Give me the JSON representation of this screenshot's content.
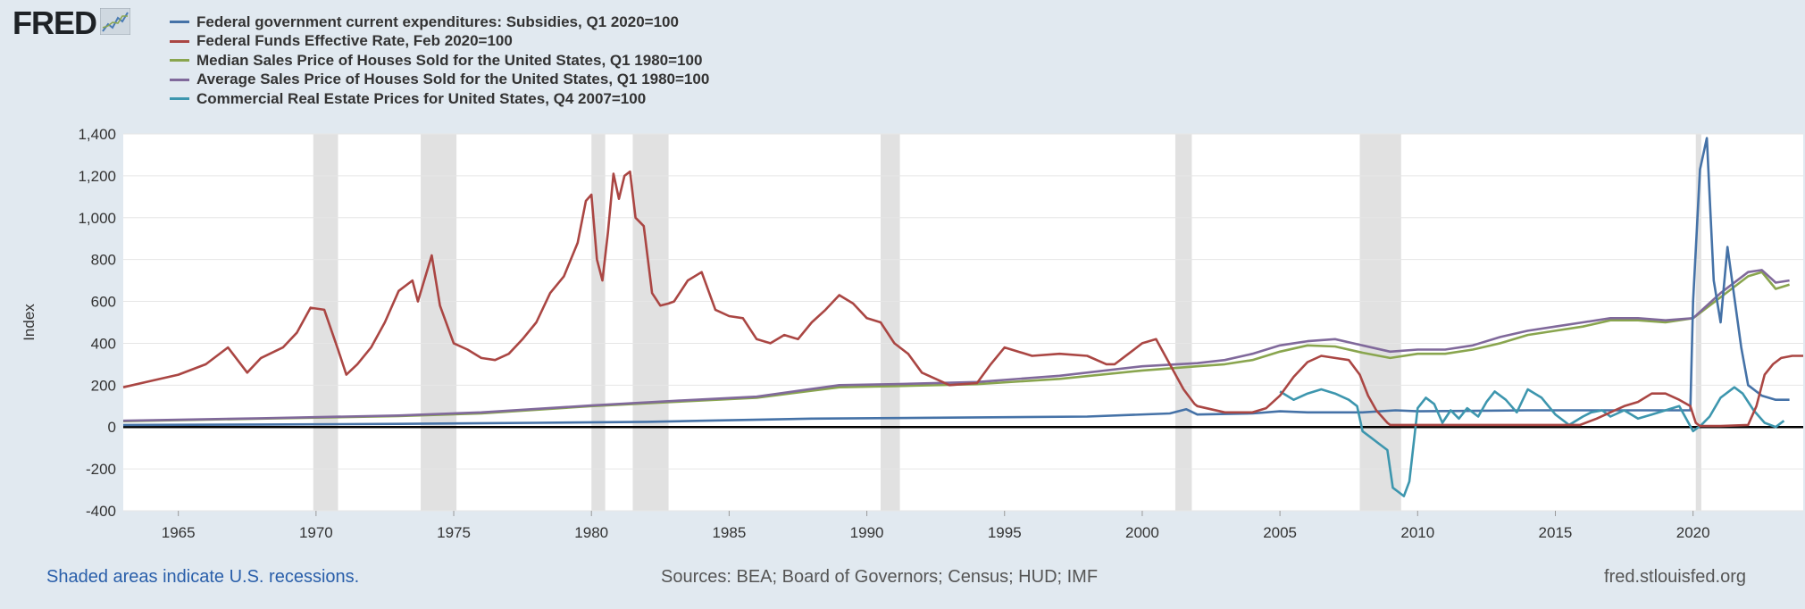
{
  "header": {
    "logo_text": "FRED",
    "logo_icon": "line-graph-icon"
  },
  "legend": [
    {
      "label": "Federal government current expenditures: Subsidies, Q1 2020=100",
      "color": "#4572a7"
    },
    {
      "label": "Federal Funds Effective Rate, Feb 2020=100",
      "color": "#aa4643"
    },
    {
      "label": "Median Sales Price of Houses Sold for the United States, Q1 1980=100",
      "color": "#89a54e"
    },
    {
      "label": "Average Sales Price of Houses Sold for the United States, Q1 1980=100",
      "color": "#80699b"
    },
    {
      "label": "Commercial Real Estate Prices for United States, Q4 2007=100",
      "color": "#3d96ae"
    }
  ],
  "footer": {
    "recession_note": "Shaded areas indicate U.S. recessions.",
    "sources": "Sources: BEA; Board of Governors; Census; HUD; IMF",
    "site": "fred.stlouisfed.org"
  },
  "chart_data": {
    "type": "line",
    "ylabel": "Index",
    "xlabel": "",
    "xlim": [
      1963.0,
      2024.0
    ],
    "ylim": [
      -400,
      1400
    ],
    "x_ticks": [
      1965,
      1970,
      1975,
      1980,
      1985,
      1990,
      1995,
      2000,
      2005,
      2010,
      2015,
      2020
    ],
    "y_ticks": [
      -400,
      -200,
      0,
      200,
      400,
      600,
      800,
      1000,
      1200,
      1400
    ],
    "y_tick_labels": [
      "-400",
      "-200",
      "0",
      "200",
      "400",
      "600",
      "800",
      "1,000",
      "1,200",
      "1,400"
    ],
    "grid": true,
    "legend_position": "top-left",
    "recessions": [
      [
        1969.9,
        1970.8
      ],
      [
        1973.8,
        1975.1
      ],
      [
        1980.0,
        1980.5
      ],
      [
        1981.5,
        1982.8
      ],
      [
        1990.5,
        1991.2
      ],
      [
        2001.2,
        2001.8
      ],
      [
        2007.9,
        2009.4
      ],
      [
        2020.1,
        2020.3
      ]
    ],
    "series": [
      {
        "name": "Federal government current expenditures: Subsidies, Q1 2020=100",
        "x": [
          1963,
          1968,
          1973,
          1978,
          1982,
          1984,
          1988,
          1993,
          1998,
          2001,
          2001.6,
          2002,
          2004,
          2005,
          2006,
          2008,
          2009.2,
          2010,
          2014,
          2019.9,
          2020.0,
          2020.25,
          2020.5,
          2020.75,
          2021.0,
          2021.25,
          2021.5,
          2021.75,
          2022.0,
          2022.5,
          2023.0,
          2023.5
        ],
        "values": [
          10,
          12,
          15,
          20,
          25,
          30,
          40,
          45,
          50,
          65,
          85,
          60,
          65,
          75,
          70,
          70,
          80,
          75,
          80,
          80,
          600,
          1230,
          1380,
          700,
          500,
          860,
          620,
          380,
          200,
          150,
          130,
          130
        ]
      },
      {
        "name": "Federal Funds Effective Rate, Feb 2020=100",
        "x": [
          1963,
          1964,
          1965,
          1966,
          1966.8,
          1967.5,
          1968,
          1968.8,
          1969.3,
          1969.8,
          1970.3,
          1970.8,
          1971.1,
          1971.5,
          1972,
          1972.5,
          1973,
          1973.5,
          1973.7,
          1974.2,
          1974.5,
          1975,
          1975.5,
          1976,
          1976.5,
          1977,
          1977.5,
          1978,
          1978.5,
          1979,
          1979.5,
          1979.8,
          1980.0,
          1980.2,
          1980.4,
          1980.6,
          1980.8,
          1981.0,
          1981.2,
          1981.4,
          1981.6,
          1981.9,
          1982.2,
          1982.5,
          1982.8,
          1983,
          1983.5,
          1984,
          1984.5,
          1985,
          1985.5,
          1986,
          1986.5,
          1987,
          1987.5,
          1988,
          1988.5,
          1989,
          1989.5,
          1990,
          1990.5,
          1991,
          1991.5,
          1992,
          1992.5,
          1993,
          1994,
          1994.5,
          1995,
          1996,
          1997,
          1998,
          1998.7,
          1999,
          1999.5,
          2000,
          2000.5,
          2001,
          2001.5,
          2001.9,
          2002,
          2003,
          2003.5,
          2004,
          2004.5,
          2005,
          2005.5,
          2006,
          2006.5,
          2007,
          2007.5,
          2007.9,
          2008.2,
          2008.5,
          2008.9,
          2009,
          2010,
          2015.9,
          2016.5,
          2017,
          2017.5,
          2018,
          2018.5,
          2019,
          2019.5,
          2019.9,
          2020.1,
          2020.25,
          2021,
          2022,
          2022.3,
          2022.6,
          2022.9,
          2023.2,
          2023.6,
          2024
        ],
        "values": [
          190,
          220,
          250,
          300,
          380,
          260,
          330,
          380,
          450,
          570,
          560,
          370,
          250,
          300,
          380,
          500,
          650,
          700,
          600,
          820,
          580,
          400,
          370,
          330,
          320,
          350,
          420,
          500,
          640,
          720,
          880,
          1080,
          1110,
          800,
          700,
          930,
          1210,
          1090,
          1200,
          1220,
          1000,
          960,
          640,
          580,
          590,
          600,
          700,
          740,
          560,
          530,
          520,
          420,
          400,
          440,
          420,
          500,
          560,
          630,
          590,
          520,
          500,
          400,
          350,
          260,
          230,
          200,
          210,
          300,
          380,
          340,
          350,
          340,
          300,
          300,
          350,
          400,
          420,
          300,
          180,
          110,
          100,
          70,
          70,
          70,
          90,
          150,
          240,
          310,
          340,
          330,
          320,
          250,
          150,
          80,
          20,
          10,
          10,
          10,
          40,
          70,
          100,
          120,
          160,
          160,
          130,
          100,
          20,
          5,
          5,
          10,
          100,
          250,
          300,
          330,
          340,
          340
        ]
      },
      {
        "name": "Median Sales Price of Houses Sold for the United States, Q1 1980=100",
        "x": [
          1963,
          1968,
          1973,
          1976,
          1980,
          1983,
          1986,
          1989,
          1991,
          1994,
          1997,
          2000,
          2002,
          2003,
          2004,
          2005,
          2006,
          2007,
          2008,
          2009,
          2010,
          2011,
          2012,
          2013,
          2014,
          2015,
          2016,
          2017,
          2018,
          2019,
          2020,
          2021,
          2022,
          2022.5,
          2023,
          2023.5
        ],
        "values": [
          28,
          40,
          52,
          65,
          100,
          120,
          140,
          190,
          195,
          205,
          230,
          270,
          290,
          300,
          320,
          360,
          390,
          385,
          355,
          330,
          350,
          350,
          370,
          400,
          440,
          460,
          480,
          510,
          510,
          500,
          520,
          620,
          720,
          740,
          660,
          680
        ]
      },
      {
        "name": "Average Sales Price of Houses Sold for the United States, Q1 1980=100",
        "x": [
          1963,
          1968,
          1973,
          1976,
          1980,
          1983,
          1986,
          1989,
          1991,
          1994,
          1997,
          2000,
          2002,
          2003,
          2004,
          2005,
          2006,
          2007,
          2008,
          2009,
          2010,
          2011,
          2012,
          2013,
          2014,
          2015,
          2016,
          2017,
          2018,
          2019,
          2020,
          2021,
          2022,
          2022.5,
          2023,
          2023.5
        ],
        "values": [
          30,
          42,
          55,
          70,
          103,
          125,
          145,
          200,
          205,
          215,
          245,
          290,
          305,
          320,
          350,
          390,
          410,
          420,
          390,
          360,
          370,
          370,
          390,
          430,
          460,
          480,
          500,
          520,
          520,
          510,
          520,
          640,
          740,
          750,
          690,
          700
        ]
      },
      {
        "name": "Commercial Real Estate Prices for United States, Q4 2007=100",
        "x": [
          2005,
          2005.5,
          2006,
          2006.5,
          2007,
          2007.5,
          2007.8,
          2008.0,
          2008.3,
          2008.6,
          2008.9,
          2009.1,
          2009.3,
          2009.5,
          2009.7,
          2010.0,
          2010.3,
          2010.6,
          2010.9,
          2011.2,
          2011.5,
          2011.8,
          2012.2,
          2012.5,
          2012.8,
          2013.2,
          2013.6,
          2014,
          2014.5,
          2015,
          2015.5,
          2016,
          2016.3,
          2016.7,
          2017,
          2017.5,
          2018,
          2018.5,
          2019,
          2019.5,
          2020,
          2020.3,
          2020.6,
          2021,
          2021.5,
          2021.8,
          2022.2,
          2022.6,
          2023,
          2023.3
        ],
        "values": [
          170,
          130,
          160,
          180,
          160,
          130,
          100,
          -20,
          -50,
          -80,
          -110,
          -290,
          -310,
          -330,
          -260,
          90,
          140,
          110,
          20,
          80,
          40,
          90,
          50,
          120,
          170,
          130,
          70,
          180,
          140,
          60,
          10,
          50,
          70,
          80,
          50,
          80,
          40,
          60,
          80,
          100,
          -20,
          10,
          50,
          140,
          190,
          160,
          80,
          20,
          0,
          30
        ]
      }
    ]
  }
}
